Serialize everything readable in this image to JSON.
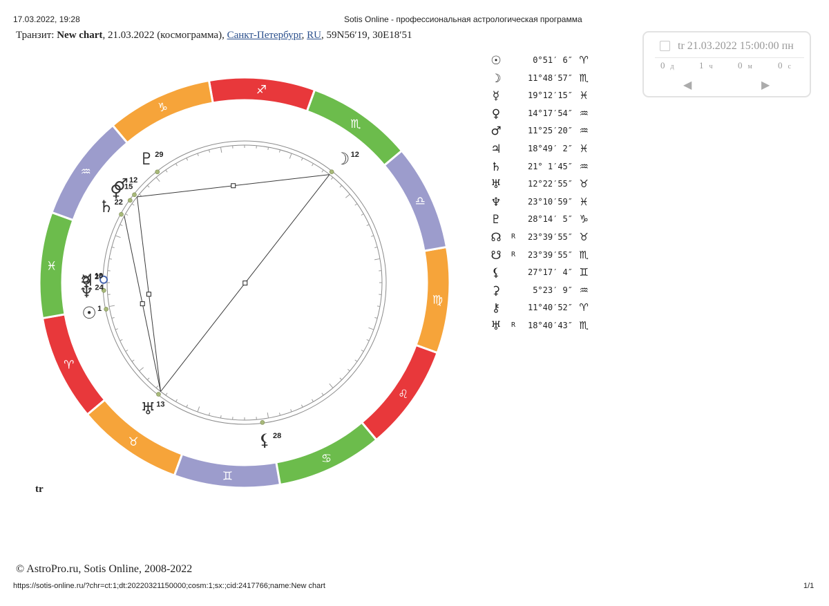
{
  "print_header": {
    "datetime": "17.03.2022, 19:28",
    "page_title": "Sotis Online - профессиональная астрологическая программа"
  },
  "chart_header": {
    "prefix": "Транзит: ",
    "chart_name": "New chart",
    "date_info": ", 21.03.2022 (космограмма), ",
    "city": "Санкт-Петербург",
    "sep": ", ",
    "country": "RU",
    "coords": ", 59N56′19, 30E18′51"
  },
  "wheel": {
    "signs": [
      {
        "glyph": "♈",
        "color": "#e8383b"
      },
      {
        "glyph": "♉",
        "color": "#f6a43a"
      },
      {
        "glyph": "♊",
        "color": "#9c9ccc"
      },
      {
        "glyph": "♋",
        "color": "#6cbc4c"
      },
      {
        "glyph": "♌",
        "color": "#e8383b"
      },
      {
        "glyph": "♍",
        "color": "#f6a43a"
      },
      {
        "glyph": "♎",
        "color": "#9c9ccc"
      },
      {
        "glyph": "♏",
        "color": "#6cbc4c"
      },
      {
        "glyph": "♐",
        "color": "#e8383b"
      },
      {
        "glyph": "♑",
        "color": "#f6a43a"
      },
      {
        "glyph": "♒",
        "color": "#9c9ccc"
      },
      {
        "glyph": "♓",
        "color": "#6cbc4c"
      }
    ],
    "planets": [
      {
        "name": "sun",
        "glyph": "☉",
        "deg_label": "1",
        "longitude": 0.85,
        "circled": false
      },
      {
        "name": "moon",
        "glyph": "☽",
        "deg_label": "12",
        "longitude": 221.81,
        "circled": false
      },
      {
        "name": "mercury",
        "glyph": "☿",
        "deg_label": "20",
        "longitude": 349.2,
        "circled": false
      },
      {
        "name": "venus",
        "glyph": "♀",
        "deg_label": "15",
        "longitude": 314.3,
        "circled": false
      },
      {
        "name": "mars",
        "glyph": "♂",
        "deg_label": "12",
        "longitude": 311.42,
        "circled": false
      },
      {
        "name": "jupiter",
        "glyph": "♃",
        "deg_label": "19",
        "longitude": 348.82,
        "circled": true
      },
      {
        "name": "saturn",
        "glyph": "♄",
        "deg_label": "22",
        "longitude": 321.03,
        "circled": false
      },
      {
        "name": "uranus",
        "glyph": "♅",
        "deg_label": "13",
        "longitude": 42.38,
        "circled": false
      },
      {
        "name": "neptune",
        "glyph": "♆",
        "deg_label": "24",
        "longitude": 353.18,
        "circled": false
      },
      {
        "name": "pluto",
        "glyph": "♇",
        "deg_label": "29",
        "longitude": 298.23,
        "circled": false
      },
      {
        "name": "lilith",
        "glyph": "⚸",
        "deg_label": "28",
        "longitude": 87.28,
        "circled": false
      }
    ],
    "aspects": [
      {
        "from": "uranus",
        "to": "mars"
      },
      {
        "from": "uranus",
        "to": "saturn"
      },
      {
        "from": "uranus",
        "to": "moon"
      },
      {
        "from": "mars",
        "to": "moon"
      }
    ],
    "colors": {
      "aspect_line": "#3a3a3a",
      "planet_dot": "#a8b97a",
      "ring_line": "#8a8a8a"
    }
  },
  "planet_table": [
    {
      "glyph": "☉",
      "retro": "",
      "value": "0°51′ 6″",
      "sign": "♈"
    },
    {
      "glyph": "☽",
      "retro": "",
      "value": "11°48′57″",
      "sign": "♏"
    },
    {
      "glyph": "☿",
      "retro": "",
      "value": "19°12′15″",
      "sign": "♓"
    },
    {
      "glyph": "♀",
      "retro": "",
      "value": "14°17′54″",
      "sign": "♒"
    },
    {
      "glyph": "♂",
      "retro": "",
      "value": "11°25′20″",
      "sign": "♒"
    },
    {
      "glyph": "♃",
      "retro": "",
      "value": "18°49′ 2″",
      "sign": "♓"
    },
    {
      "glyph": "♄",
      "retro": "",
      "value": "21° 1′45″",
      "sign": "♒"
    },
    {
      "glyph": "♅",
      "retro": "",
      "value": "12°22′55″",
      "sign": "♉"
    },
    {
      "glyph": "♆",
      "retro": "",
      "value": "23°10′59″",
      "sign": "♓"
    },
    {
      "glyph": "♇",
      "retro": "",
      "value": "28°14′ 5″",
      "sign": "♑"
    },
    {
      "glyph": "☊",
      "retro": "R",
      "value": "23°39′55″",
      "sign": "♉"
    },
    {
      "glyph": "☋",
      "retro": "R",
      "value": "23°39′55″",
      "sign": "♏"
    },
    {
      "glyph": "⚸",
      "retro": "",
      "value": "27°17′ 4″",
      "sign": "♊"
    },
    {
      "glyph": "⚳",
      "retro": "",
      "value": "5°23′ 9″",
      "sign": "♒"
    },
    {
      "glyph": "⚷",
      "retro": "",
      "value": "11°40′52″",
      "sign": "♈"
    },
    {
      "glyph": "♅",
      "retro": "R",
      "value": "18°40′43″",
      "sign": "♏"
    }
  ],
  "date_panel": {
    "datetime": "tr 21.03.2022 15:00:00 пн",
    "steps": [
      {
        "value": "0",
        "unit": "д"
      },
      {
        "value": "1",
        "unit": "ч"
      },
      {
        "value": "0",
        "unit": "м"
      },
      {
        "value": "0",
        "unit": "с"
      }
    ],
    "prev_icon": "◀",
    "next_icon": "▶"
  },
  "tr_label": "tr",
  "footer": {
    "copyright": "© AstroPro.ru, Sotis Online, 2008-2022",
    "url": "https://sotis-online.ru/?chr=ct:1;dt:20220321150000;cosm:1;sx:;cid:2417766;name:New chart",
    "page": "1/1"
  }
}
